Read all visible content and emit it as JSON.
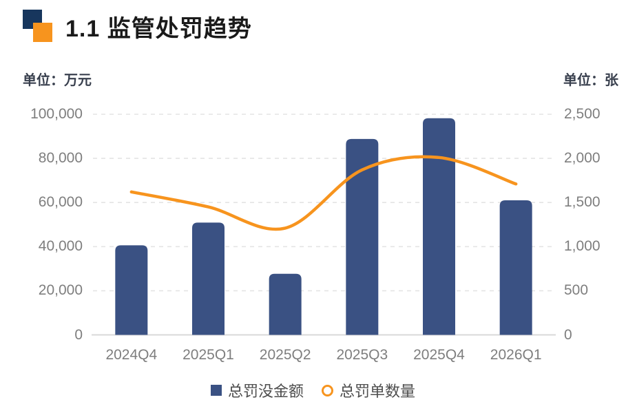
{
  "header": {
    "title": "1.1 监管处罚趋势"
  },
  "colors": {
    "logo_navy": "#17365D",
    "logo_orange": "#F7941E",
    "bar": "#3A5183",
    "line": "#F7941E",
    "title_text": "#1A1A1A",
    "unit_text": "#39404E",
    "axis_text": "#7E7E7E",
    "legend_text": "#4D4D4D",
    "grid": "#E4E4E4",
    "axis_line": "#D8D8D8"
  },
  "chart_data": {
    "type": "bar+line",
    "title": "1.1 监管处罚趋势",
    "categories": [
      "2024Q4",
      "2025Q1",
      "2025Q2",
      "2025Q3",
      "2025Q4",
      "2026Q1"
    ],
    "series": [
      {
        "name": "总罚没金额",
        "type": "bar",
        "axis": "left",
        "values": [
          40600,
          50900,
          27700,
          88800,
          98200,
          61000
        ]
      },
      {
        "name": "总罚单数量",
        "type": "line",
        "axis": "right",
        "values": [
          1620,
          1450,
          1210,
          1870,
          2010,
          1710
        ]
      }
    ],
    "left_axis": {
      "label": "单位：万元",
      "min": 0,
      "max": 100000,
      "ticks": [
        "0",
        "20,000",
        "40,000",
        "60,000",
        "80,000",
        "100,000"
      ]
    },
    "right_axis": {
      "label": "单位：张",
      "min": 0,
      "max": 2500,
      "ticks": [
        "0",
        "500",
        "1,000",
        "1,500",
        "2,000",
        "2,500"
      ]
    },
    "grid": "horizontal-dashed",
    "legend_position": "bottom"
  }
}
